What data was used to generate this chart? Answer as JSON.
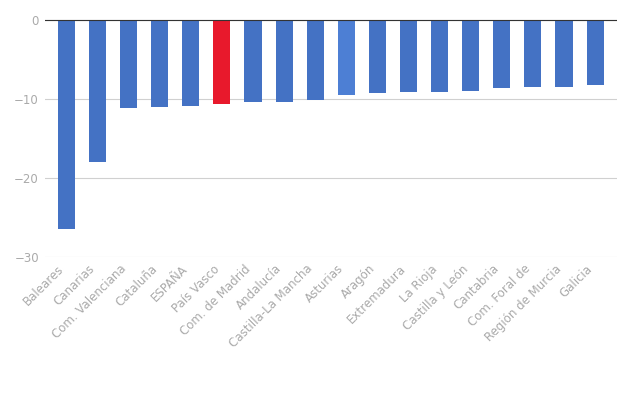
{
  "categories": [
    "Baleares",
    "Canarias",
    "Com. Valenciana",
    "Cataluña",
    "ESPAÑA",
    "País Vasco",
    "Com. de Madrid",
    "Andalucía",
    "Castilla-La Mancha",
    "Asturias",
    "Aragón",
    "Extremadura",
    "La Rioja",
    "Castilla y León",
    "Cantabria",
    "Com. Foral de",
    "Región de Murcia",
    "Galicia"
  ],
  "values": [
    -26.5,
    -18.0,
    -11.2,
    -11.0,
    -10.9,
    -10.7,
    -10.4,
    -10.4,
    -10.2,
    -9.5,
    -9.3,
    -9.2,
    -9.1,
    -9.0,
    -8.7,
    -8.5,
    -8.5,
    -8.3
  ],
  "bar_colors": [
    "#4472c4",
    "#4472c4",
    "#4472c4",
    "#4472c4",
    "#4472c4",
    "#e8192c",
    "#4472c4",
    "#4472c4",
    "#4472c4",
    "#4d7fd4",
    "#4472c4",
    "#4472c4",
    "#4472c4",
    "#4472c4",
    "#4472c4",
    "#4472c4",
    "#4472c4",
    "#4472c4"
  ],
  "background_color": "#ffffff",
  "grid_color": "#d0d0d0",
  "tick_color": "#aaaaaa",
  "ylim_min": -30,
  "ylim_max": 1,
  "yticks": [
    0,
    -10,
    -20,
    -30
  ],
  "tick_fontsize": 8.5,
  "bar_width": 0.55
}
